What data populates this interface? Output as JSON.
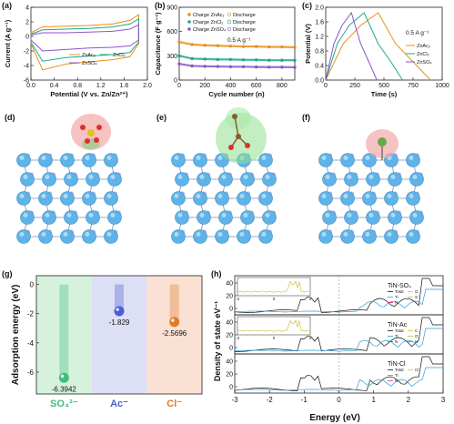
{
  "panels": {
    "a": {
      "label": "(a)",
      "xlabel": "Potential (V vs. Zn/Zn²⁺)",
      "ylabel": "Current (A g⁻¹)",
      "xticks": [
        "0.0",
        "0.4",
        "0.8",
        "1.2",
        "1.6",
        "2.0"
      ],
      "yticks": [
        "4",
        "2",
        "0",
        "-2",
        "-4",
        "-6"
      ],
      "legend": [
        "ZnAc₂",
        "ZnCl₂",
        "ZnSO₄"
      ]
    },
    "b": {
      "label": "(b)",
      "xlabel": "Cycle number (n)",
      "ylabel": "Capacitance (F g⁻¹)",
      "xticks": [
        "0",
        "200",
        "400",
        "600",
        "800"
      ],
      "yticks": [
        "900",
        "600",
        "300",
        "0"
      ],
      "annotation": "0.5 A g⁻¹",
      "legend": [
        [
          "Charge ZnAc₂",
          "Discharge"
        ],
        [
          "Charge ZnCl₂",
          "Discharge"
        ],
        [
          "Charge ZnSO₄",
          "Discharge"
        ]
      ]
    },
    "c": {
      "label": "(c)",
      "xlabel": "Time (s)",
      "ylabel": "Potential (V)",
      "xticks": [
        "0",
        "250",
        "500",
        "750",
        "1000"
      ],
      "yticks": [
        "2.0",
        "1.6",
        "1.2",
        "0.8",
        "0.4",
        "0.0"
      ],
      "annotation": "0.5 A g⁻¹",
      "legend": [
        "ZnAc₂",
        "ZnCl₂",
        "ZnSO₄"
      ]
    },
    "d": {
      "label": "(d)"
    },
    "e": {
      "label": "(e)"
    },
    "f": {
      "label": "(f)"
    },
    "g": {
      "label": "(g)",
      "ylabel": "Adsorption energy (eV)",
      "yticks": [
        "0",
        "-2",
        "-4",
        "-6"
      ],
      "bars": [
        {
          "label": "SO₄²⁻",
          "value": -6.3942,
          "value_text": "-6.3942",
          "color": "#3fbf7f",
          "bg": "#d6f2dd"
        },
        {
          "label": "Ac⁻",
          "value": -1.829,
          "value_text": "-1.829",
          "color": "#4a5fd6",
          "bg": "#dcdff5"
        },
        {
          "label": "Cl⁻",
          "value": -2.5696,
          "value_text": "-2.5696",
          "color": "#e07a2a",
          "bg": "#fbe0d4"
        }
      ]
    },
    "h": {
      "label": "(h)",
      "xlabel": "Energy (eV)",
      "ylabel": "Density of state eV⁻¹",
      "xticks": [
        "-3",
        "-2",
        "-1",
        "0",
        "1",
        "2",
        "3"
      ],
      "yticks": [
        "40",
        "20",
        "0"
      ],
      "subplots": [
        "TiN-SO₄",
        "TiN-Ac",
        "TiN-Cl"
      ],
      "legends": [
        [
          "Total",
          "Ti",
          "N",
          "O",
          "S"
        ],
        [
          "Total",
          "Ti",
          "N",
          "C",
          "O",
          "H"
        ],
        [
          "Total",
          "Ti",
          "N",
          "Cl"
        ]
      ],
      "inset_xticks": [
        "-3",
        "0",
        "3"
      ]
    }
  },
  "colors": {
    "zn_ac": "#e8901c",
    "zn_cl": "#1fa88a",
    "zn_so": "#8a55c8"
  },
  "chart_data": [
    {
      "type": "line",
      "title": "",
      "xlabel": "Potential (V vs. Zn/Zn²⁺)",
      "ylabel": "Current (A g⁻¹)",
      "xlim": [
        0.0,
        2.0
      ],
      "ylim": [
        -6,
        4
      ],
      "series_note": "CV loops",
      "series": [
        {
          "name": "ZnAc₂",
          "x": [
            0.0,
            0.2,
            0.6,
            1.0,
            1.4,
            1.7,
            1.85
          ],
          "upper": [
            0.5,
            1.3,
            1.4,
            1.5,
            1.7,
            2.2,
            3.0
          ],
          "lower": [
            -1.0,
            -4.6,
            -3.8,
            -3.5,
            -3.2,
            -2.8,
            -1.0
          ]
        },
        {
          "name": "ZnCl₂",
          "x": [
            0.0,
            0.2,
            0.6,
            1.0,
            1.4,
            1.7,
            1.85
          ],
          "upper": [
            0.3,
            0.9,
            1.0,
            1.1,
            1.3,
            1.7,
            2.4
          ],
          "lower": [
            -0.8,
            -3.4,
            -2.9,
            -2.7,
            -2.5,
            -2.2,
            -0.8
          ]
        },
        {
          "name": "ZnSO₄",
          "x": [
            0.0,
            0.2,
            0.6,
            1.0,
            1.4,
            1.7,
            1.85
          ],
          "upper": [
            0.2,
            0.5,
            0.5,
            0.6,
            0.7,
            1.0,
            1.6
          ],
          "lower": [
            -0.5,
            -2.0,
            -1.8,
            -1.6,
            -1.5,
            -1.3,
            -0.5
          ]
        }
      ]
    },
    {
      "type": "scatter",
      "title": "",
      "xlabel": "Cycle number (n)",
      "ylabel": "Capacitance (F g⁻¹)",
      "xlim": [
        0,
        900
      ],
      "ylim": [
        0,
        900
      ],
      "series": [
        {
          "name": "ZnAc₂",
          "x": [
            0,
            100,
            200,
            300,
            400,
            500,
            600,
            700,
            800,
            900
          ],
          "values": [
            470,
            440,
            430,
            425,
            420,
            415,
            415,
            410,
            410,
            405
          ]
        },
        {
          "name": "ZnCl₂",
          "x": [
            0,
            100,
            200,
            300,
            400,
            500,
            600,
            700,
            800,
            900
          ],
          "values": [
            300,
            265,
            260,
            255,
            255,
            250,
            250,
            245,
            245,
            245
          ]
        },
        {
          "name": "ZnSO₄",
          "x": [
            0,
            100,
            200,
            300,
            400,
            500,
            600,
            700,
            800,
            900
          ],
          "values": [
            200,
            175,
            170,
            168,
            165,
            165,
            162,
            160,
            160,
            158
          ]
        }
      ]
    },
    {
      "type": "line",
      "title": "",
      "xlabel": "Time (s)",
      "ylabel": "Potential (V)",
      "xlim": [
        0,
        1000
      ],
      "ylim": [
        0,
        2.0
      ],
      "series": [
        {
          "name": "ZnAc₂",
          "charge": [
            [
              0,
              0
            ],
            [
              150,
              1.0
            ],
            [
              300,
              1.5
            ],
            [
              450,
              1.85
            ]
          ],
          "discharge": [
            [
              450,
              1.85
            ],
            [
              600,
              1.0
            ],
            [
              750,
              0.5
            ],
            [
              900,
              0.0
            ]
          ]
        },
        {
          "name": "ZnCl₂",
          "charge": [
            [
              0,
              0
            ],
            [
              100,
              1.0
            ],
            [
              200,
              1.5
            ],
            [
              330,
              1.85
            ]
          ],
          "discharge": [
            [
              330,
              1.85
            ],
            [
              450,
              1.0
            ],
            [
              560,
              0.5
            ],
            [
              660,
              0.0
            ]
          ]
        },
        {
          "name": "ZnSO₄",
          "charge": [
            [
              0,
              0
            ],
            [
              70,
              1.0
            ],
            [
              140,
              1.5
            ],
            [
              220,
              1.85
            ]
          ],
          "discharge": [
            [
              220,
              1.85
            ],
            [
              300,
              1.0
            ],
            [
              370,
              0.5
            ],
            [
              440,
              0.0
            ]
          ]
        }
      ]
    },
    {
      "type": "bar",
      "title": "",
      "ylabel": "Adsorption energy (eV)",
      "categories": [
        "SO₄²⁻",
        "Ac⁻",
        "Cl⁻"
      ],
      "values": [
        -6.3942,
        -1.829,
        -2.5696
      ],
      "ylim": [
        -7.5,
        0
      ]
    }
  ]
}
